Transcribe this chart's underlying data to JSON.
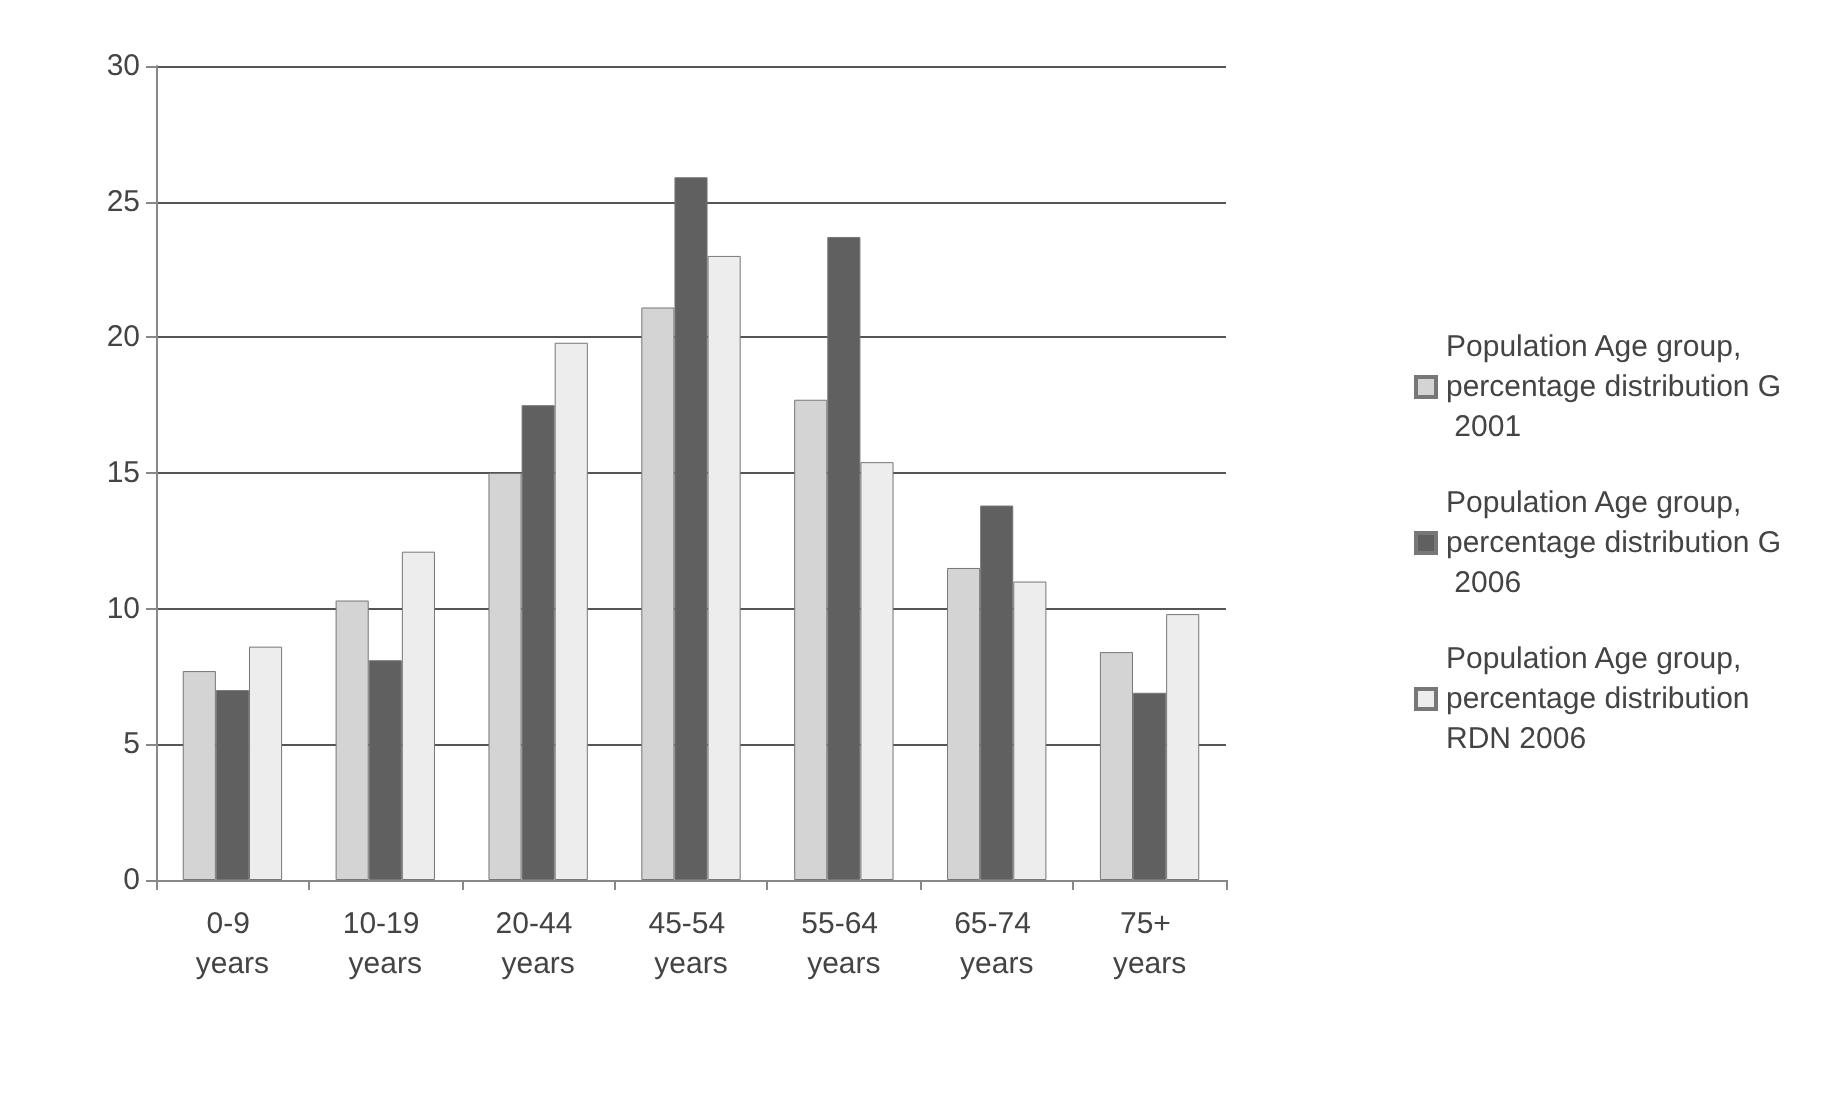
{
  "chart_data": {
    "type": "bar",
    "categories": [
      "0-9 years",
      "10-19 years",
      "20-44 years",
      "45-54 years",
      "55-64 years",
      "65-74 years",
      "75+ years"
    ],
    "series": [
      {
        "name": "Population Age group, percentage distribution G 2001",
        "color": "#d4d4d4",
        "values": [
          7.7,
          10.3,
          15.0,
          21.1,
          17.7,
          11.5,
          8.4
        ]
      },
      {
        "name": "Population Age group, percentage distribution G 2006",
        "color": "#606060",
        "values": [
          7.0,
          8.1,
          17.5,
          25.9,
          23.7,
          13.8,
          6.9
        ]
      },
      {
        "name": "Population Age group, percentage distribution RDN 2006",
        "color": "#ededed",
        "values": [
          8.6,
          12.1,
          19.8,
          23.0,
          15.4,
          11.0,
          9.8
        ]
      }
    ],
    "ylim": [
      0,
      30
    ],
    "yticks": [
      0,
      5,
      10,
      15,
      20,
      25,
      30
    ],
    "grid": "y",
    "legend": "right"
  }
}
